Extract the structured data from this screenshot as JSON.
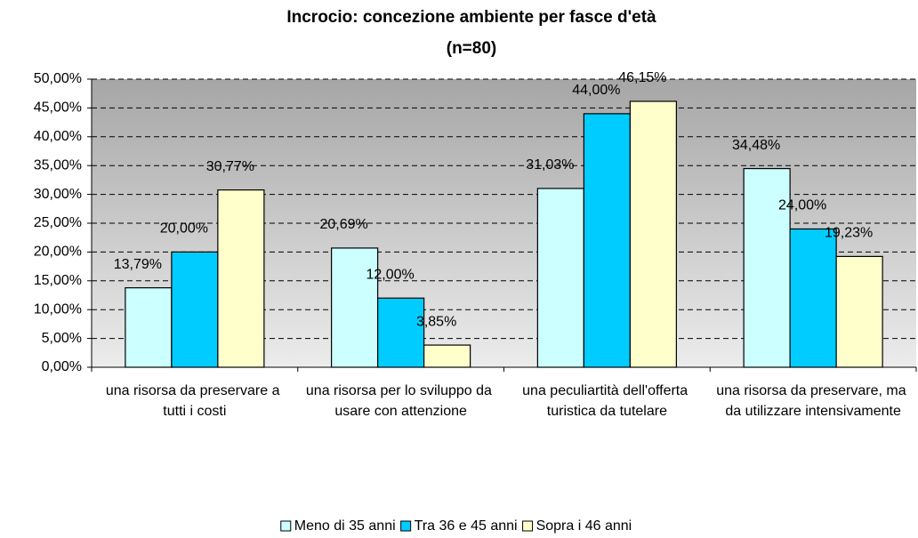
{
  "chart_data": {
    "type": "bar",
    "title": "Incrocio: concezione ambiente per fasce d'età",
    "subtitle": "(n=80)",
    "categories": [
      "una risorsa da preservare a tutti i costi",
      "una risorsa per lo sviluppo da usare con attenzione",
      "una peculiartità dell'offerta turistica da tutelare",
      "una risorsa da preservare, ma da utilizzare intensivamente"
    ],
    "series": [
      {
        "name": "Meno di 35 anni",
        "color": "#ccffff",
        "values": [
          13.79,
          20.69,
          31.03,
          34.48
        ],
        "value_labels": [
          "13,79%",
          "20,69%",
          "31,03%",
          "34,48%"
        ]
      },
      {
        "name": "Tra 36 e 45 anni",
        "color": "#00ccff",
        "values": [
          20,
          12,
          44,
          24
        ],
        "value_labels": [
          "20,00%",
          "12,00%",
          "44,00%",
          "24,00%"
        ]
      },
      {
        "name": "Sopra i 46 anni",
        "color": "#ffffcc",
        "values": [
          30.77,
          3.85,
          46.15,
          19.23
        ],
        "value_labels": [
          "30,77%",
          "3,85%",
          "46,15%",
          "19,23%"
        ]
      }
    ],
    "ylim": [
      0,
      50
    ],
    "yticks": [
      {
        "value": 0,
        "label": "0,00%"
      },
      {
        "value": 5,
        "label": "5,00%"
      },
      {
        "value": 10,
        "label": "10,00%"
      },
      {
        "value": 15,
        "label": "15,00%"
      },
      {
        "value": 20,
        "label": "20,00%"
      },
      {
        "value": 25,
        "label": "25,00%"
      },
      {
        "value": 30,
        "label": "30,00%"
      },
      {
        "value": 35,
        "label": "35,00%"
      },
      {
        "value": 40,
        "label": "40,00%"
      },
      {
        "value": 45,
        "label": "45,00%"
      },
      {
        "value": 50,
        "label": "50,00%"
      }
    ],
    "grid": true,
    "legend": "bottom"
  }
}
